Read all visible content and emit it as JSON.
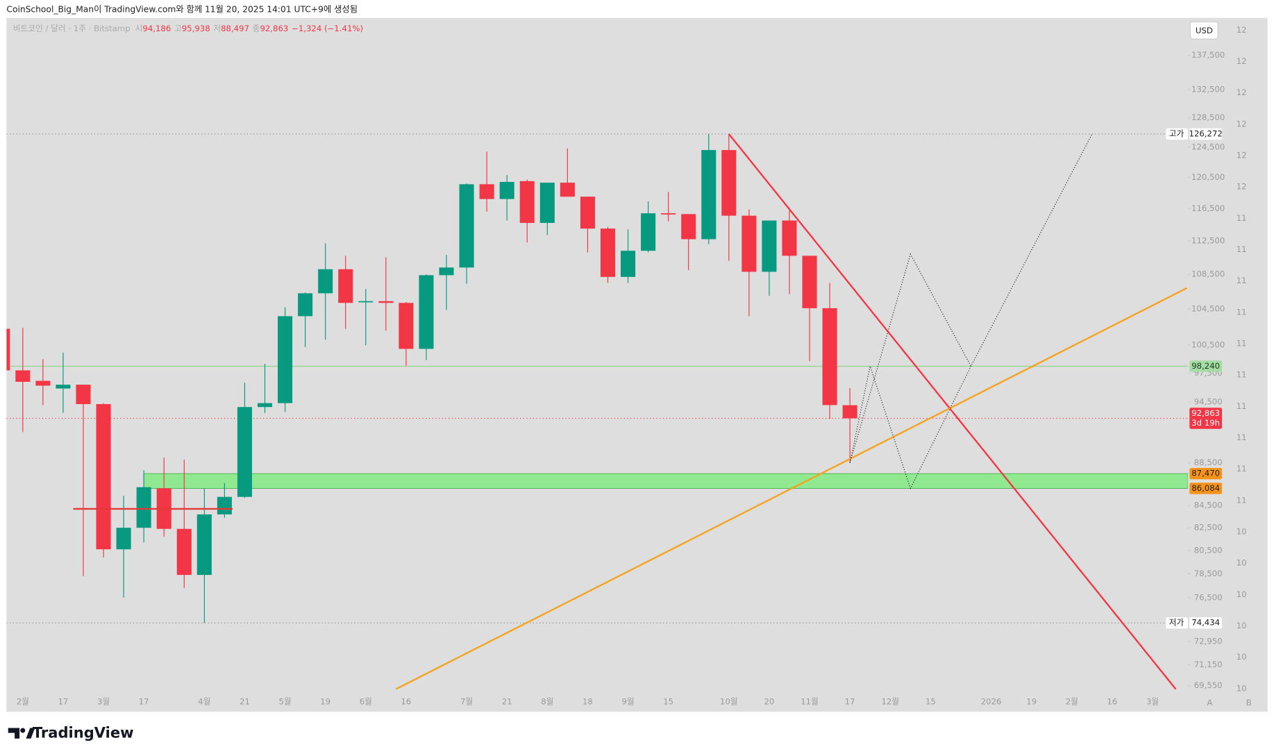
{
  "chart_data": {
    "type": "candlestick",
    "header": "CoinSchool_Big_Man이 TradingView.com와 함께 11월 20, 2025 14:01 UTC+9에 생성됨",
    "legend": {
      "symbol": "비트코인 / 달러 · 1주 · Bitstamp",
      "items": [
        {
          "label": "시",
          "value": "94,186"
        },
        {
          "label": "고",
          "value": "95,938"
        },
        {
          "label": "저",
          "value": "88,497"
        },
        {
          "label": "종",
          "value": "92,863"
        }
      ],
      "change": "−1,324 (−1.41%)"
    },
    "currency": "USD",
    "brand": "TradingView",
    "corner_labels": [
      "A",
      "B"
    ],
    "log_scale": true,
    "colors": {
      "up": "#089981",
      "down": "#f23645"
    },
    "categories": [
      null,
      "2월",
      null,
      "17",
      null,
      "3월",
      null,
      "17",
      null,
      null,
      "4월",
      null,
      "21",
      null,
      "5월",
      null,
      "19",
      null,
      "6월",
      null,
      "16",
      null,
      null,
      "7월",
      null,
      "21",
      null,
      "8월",
      null,
      "18",
      null,
      "9월",
      null,
      "15",
      null,
      null,
      "10월",
      null,
      "20",
      null,
      "11월",
      null,
      "17",
      null,
      "12월",
      null,
      "15",
      null,
      null,
      "2026",
      null,
      "19",
      null,
      "2월",
      null,
      "16",
      null,
      "3월"
    ],
    "open": [
      102300,
      97800,
      96700,
      95900,
      96300,
      94300,
      80600,
      82500,
      86100,
      82400,
      78400,
      83700,
      85300,
      94000,
      94400,
      103700,
      106300,
      109100,
      105300,
      105400,
      105200,
      100100,
      108400,
      109300,
      119600,
      117700,
      120000,
      114700,
      119800,
      118000,
      114000,
      108200,
      111300,
      115900,
      115800,
      112700,
      124100,
      115600,
      108800,
      115000,
      110700,
      104600,
      94186,
      null,
      null,
      null,
      null,
      null,
      null,
      null,
      null,
      null,
      null,
      null,
      null,
      null,
      null,
      null
    ],
    "high": [
      102400,
      102400,
      99000,
      99700,
      96300,
      94400,
      85400,
      87800,
      89000,
      88800,
      86100,
      86600,
      96500,
      98500,
      104700,
      106400,
      112200,
      110700,
      106800,
      110500,
      105300,
      108500,
      110800,
      119700,
      123900,
      120800,
      120200,
      119800,
      124300,
      118000,
      114200,
      113900,
      117400,
      118600,
      115800,
      126272,
      126200,
      116400,
      115000,
      116600,
      110700,
      107500,
      95938,
      null,
      null,
      null,
      null,
      null,
      null,
      null,
      null,
      null,
      null,
      null,
      null,
      null,
      null,
      null
    ],
    "low": [
      97500,
      91500,
      94200,
      93400,
      78300,
      79900,
      76500,
      81200,
      81700,
      77300,
      74434,
      83400,
      85200,
      93400,
      93500,
      100300,
      101100,
      102300,
      100500,
      102100,
      98300,
      98900,
      104400,
      107400,
      116100,
      115000,
      112300,
      113200,
      118000,
      111100,
      107500,
      107500,
      111100,
      114900,
      109000,
      112100,
      110100,
      103700,
      106000,
      106200,
      98800,
      92800,
      88497,
      null,
      null,
      null,
      null,
      null,
      null,
      null,
      null,
      null,
      null,
      null,
      null,
      null,
      null,
      null
    ],
    "close": [
      97800,
      96600,
      96200,
      96300,
      94300,
      80600,
      82500,
      86200,
      82400,
      78400,
      83700,
      85300,
      94000,
      94400,
      103700,
      106300,
      109100,
      105200,
      105400,
      105200,
      100100,
      108400,
      109300,
      119600,
      117700,
      119900,
      114700,
      119800,
      118000,
      114000,
      108200,
      111300,
      115900,
      115800,
      112700,
      124100,
      115600,
      108800,
      115000,
      110700,
      104600,
      94200,
      92863,
      null,
      null,
      null,
      null,
      null,
      null,
      null,
      null,
      null,
      null,
      null,
      null,
      null,
      null,
      null
    ],
    "ylim": [
      68880,
      143160
    ],
    "yticks": [
      {
        "value": 137500,
        "label": "137,500"
      },
      {
        "value": 132500,
        "label": "132,500"
      },
      {
        "value": 128500,
        "label": "128,500"
      },
      {
        "value": 124500,
        "label": "124,500"
      },
      {
        "value": 120500,
        "label": "120,500"
      },
      {
        "value": 116500,
        "label": "116,500"
      },
      {
        "value": 112500,
        "label": "112,500"
      },
      {
        "value": 108500,
        "label": "108,500"
      },
      {
        "value": 104500,
        "label": "104,500"
      },
      {
        "value": 100500,
        "label": "100,500"
      },
      {
        "value": 97500,
        "label": "97,500"
      },
      {
        "value": 94500,
        "label": "94,500"
      },
      {
        "value": 88500,
        "label": "88,500"
      },
      {
        "value": 84500,
        "label": "84,500"
      },
      {
        "value": 82500,
        "label": "82,500"
      },
      {
        "value": 80500,
        "label": "80,500"
      },
      {
        "value": 78500,
        "label": "78,500"
      },
      {
        "value": 76500,
        "label": "76,500"
      },
      {
        "value": 72950,
        "label": "72,950"
      },
      {
        "value": 71150,
        "label": "71,150"
      },
      {
        "value": 69550,
        "label": "69,550"
      }
    ],
    "right_scale_labels": [
      12,
      12,
      12,
      12,
      12,
      12,
      11,
      11,
      11,
      11,
      11,
      11,
      11,
      11,
      11,
      11,
      10,
      10,
      10,
      10,
      10,
      10
    ],
    "levels": [
      {
        "value": 126272,
        "color": "#8a8a8a",
        "dash": "1 3"
      },
      {
        "value": 98240,
        "color": "#8fd48f",
        "dash": "none"
      },
      {
        "value": 92863,
        "color": "#f23645",
        "dash": "1 3"
      },
      {
        "value": 74434,
        "color": "#8a8a8a",
        "dash": "1 3"
      }
    ],
    "zone": {
      "start": 7,
      "range": [
        86084,
        87470
      ],
      "color": "#90e890",
      "border": "#4caf50"
    },
    "drawings": [
      {
        "color": "#f23645",
        "dash": "none",
        "width": 2,
        "points": [
          [
            36,
            126272
          ],
          [
            58.15,
            69300
          ]
        ]
      },
      {
        "color": "#f7a21b",
        "dash": "none",
        "width": 2,
        "points": [
          [
            19.5,
            69300
          ],
          [
            58.7,
            106900
          ]
        ]
      },
      {
        "color": "#222222",
        "dash": "1 2",
        "width": 1,
        "points": [
          [
            42,
            88497
          ],
          [
            43,
            98240
          ],
          [
            45,
            86084
          ],
          [
            48,
            98240
          ],
          [
            54,
            126272
          ]
        ]
      },
      {
        "color": "#222222",
        "dash": "1 2",
        "width": 1,
        "points": [
          [
            42,
            88497
          ],
          [
            45,
            110900
          ],
          [
            48,
            98240
          ]
        ]
      },
      {
        "color": "#e53935",
        "dash": "none",
        "width": 2,
        "points": [
          [
            3.5,
            84200
          ],
          [
            11.4,
            84200
          ]
        ]
      }
    ],
    "price_labels": [
      {
        "value": 126272,
        "label": "126,272",
        "tag": "고가",
        "bg": "#ffffff",
        "fg": "#222222"
      },
      {
        "value": 98240,
        "label": "98,240",
        "bg": "#a5dca5",
        "fg": "#1b3a1b"
      },
      {
        "value": 92863,
        "label": "92,863",
        "sub": "3d 19h",
        "bg": "#f23645",
        "fg": "#ffffff"
      },
      {
        "value": 87470,
        "label": "87,470",
        "bg": "#f7931a",
        "fg": "#222222"
      },
      {
        "value": 86084,
        "label": "86,084",
        "bg": "#f7931a",
        "fg": "#222222"
      },
      {
        "value": 74434,
        "label": "74,434",
        "tag": "저가",
        "bg": "#ffffff",
        "fg": "#222222"
      }
    ]
  }
}
